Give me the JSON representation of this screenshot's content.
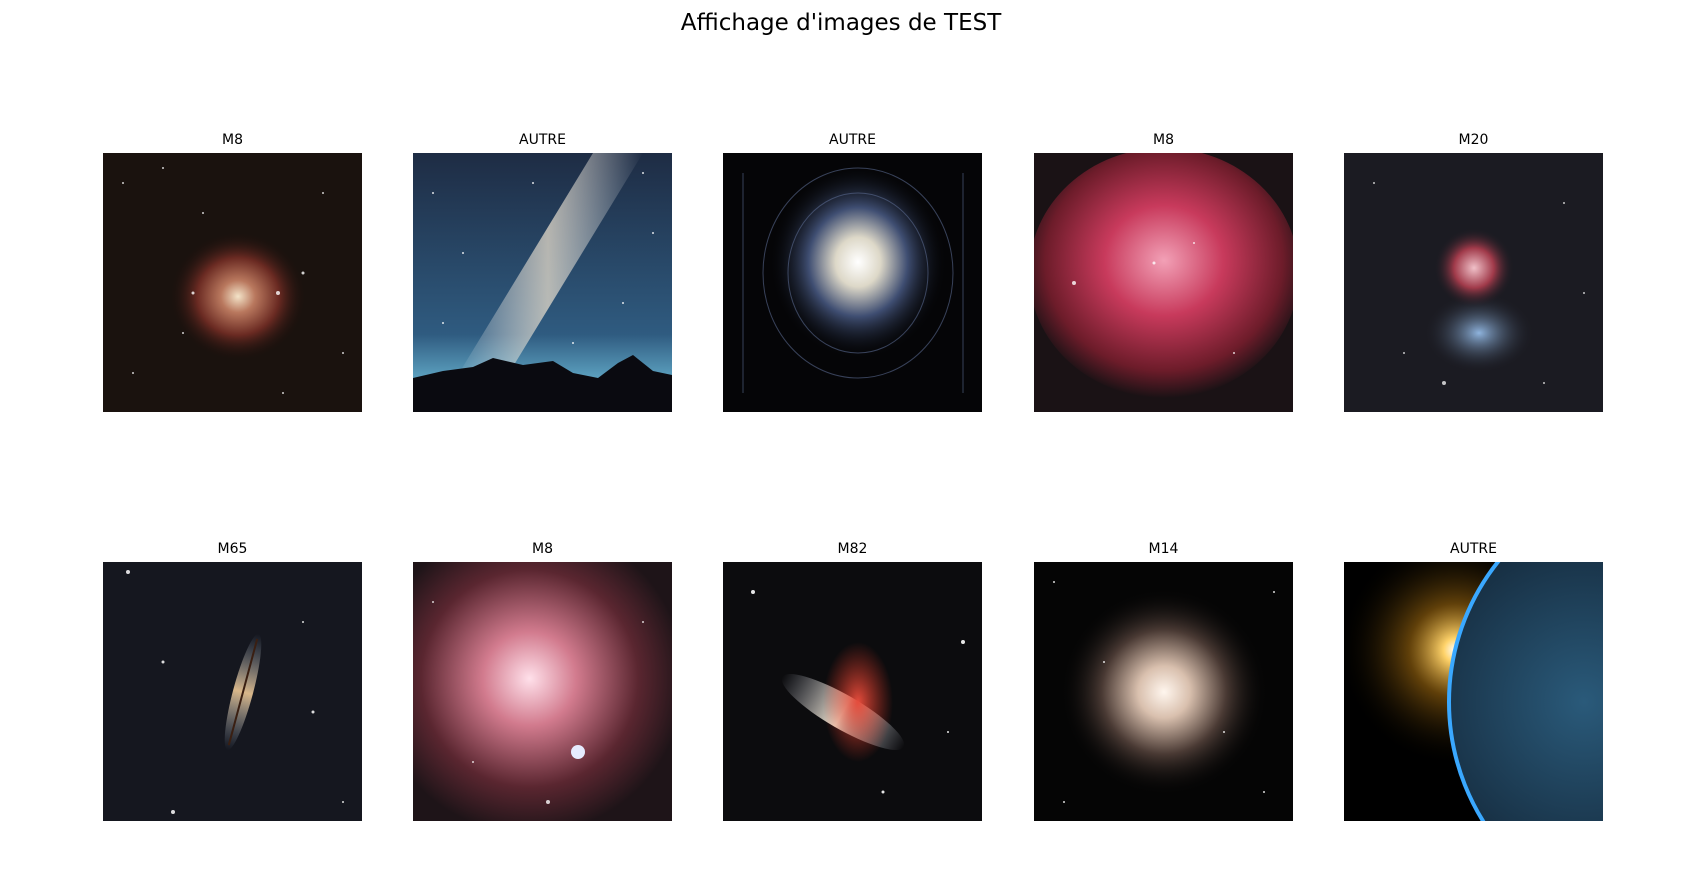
{
  "figure": {
    "title": "Affichage d'images de TEST"
  },
  "panels": [
    {
      "label": "M8"
    },
    {
      "label": "AUTRE"
    },
    {
      "label": "AUTRE"
    },
    {
      "label": "M8"
    },
    {
      "label": "M20"
    },
    {
      "label": "M65"
    },
    {
      "label": "M8"
    },
    {
      "label": "M82"
    },
    {
      "label": "M14"
    },
    {
      "label": "AUTRE"
    }
  ]
}
